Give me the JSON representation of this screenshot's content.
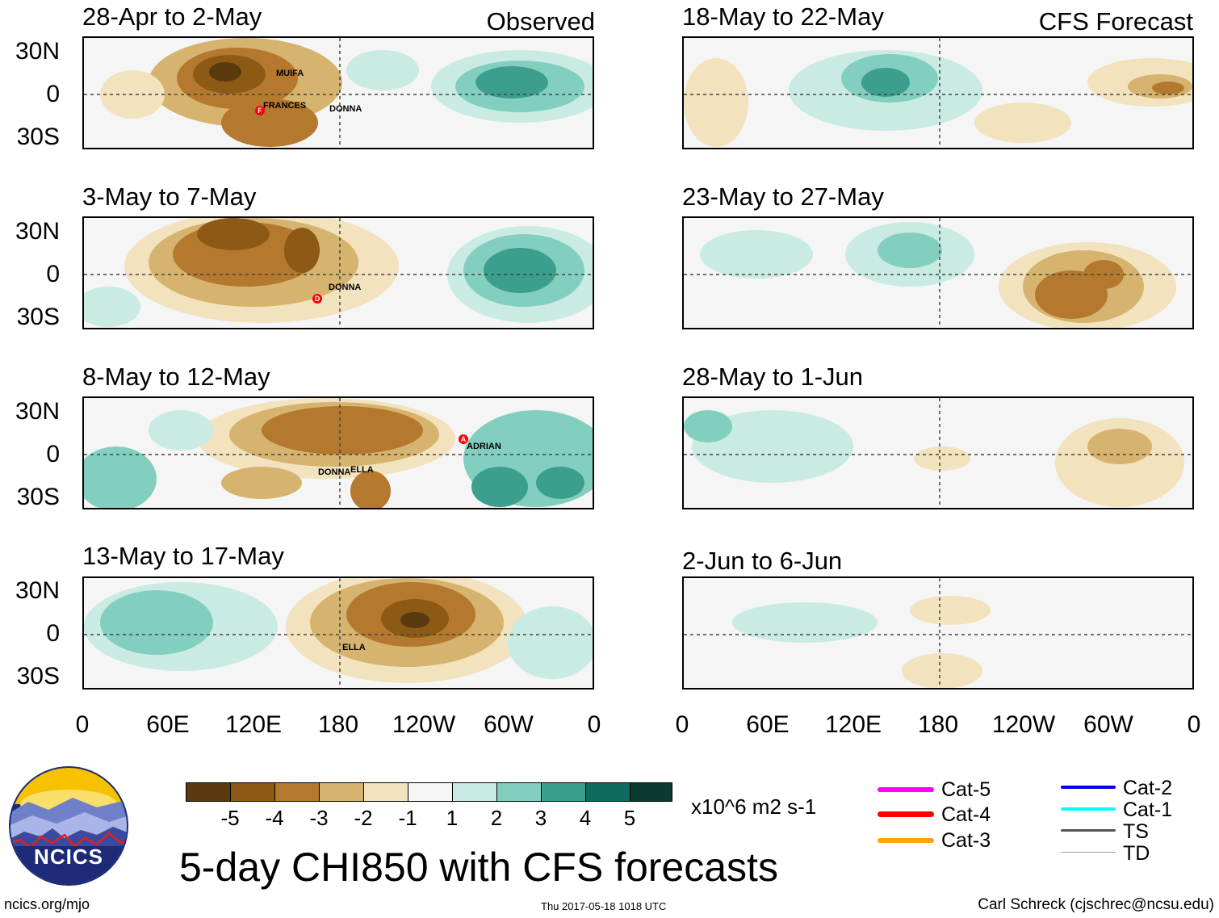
{
  "panels": [
    {
      "title": "28-Apr to 2-May",
      "tag": "Observed",
      "storms": [
        "MUIFA",
        "FRANCES",
        "DONNA"
      ]
    },
    {
      "title": "3-May to 7-May",
      "tag": "",
      "storms": [
        "DONNA"
      ]
    },
    {
      "title": "8-May to 12-May",
      "tag": "",
      "storms": [
        "ADRIAN",
        "DONNA",
        "ELLA"
      ]
    },
    {
      "title": "13-May to 17-May",
      "tag": "",
      "storms": [
        "ELLA"
      ]
    },
    {
      "title": "18-May to 22-May",
      "tag": "CFS Forecast",
      "storms": []
    },
    {
      "title": "23-May to 27-May",
      "tag": "",
      "storms": []
    },
    {
      "title": "28-May to 1-Jun",
      "tag": "",
      "storms": []
    },
    {
      "title": "2-Jun to 6-Jun",
      "tag": "",
      "storms": []
    }
  ],
  "storm_markers": {
    "FRANCES": "F",
    "DONNA": "D",
    "ADRIAN": "A"
  },
  "lat_labels": [
    "30N",
    "0",
    "30S"
  ],
  "lon_labels": [
    "0",
    "60E",
    "120E",
    "180",
    "120W",
    "60W",
    "0"
  ],
  "colorbar": {
    "colors": [
      "#5a3a0c",
      "#8c5a14",
      "#b5782f",
      "#d6b36f",
      "#f2e2bd",
      "#f5f5f5",
      "#c9ebe3",
      "#82cfc0",
      "#3c9f8e",
      "#0e6b5e",
      "#0a3b31"
    ],
    "ticks": [
      "-5",
      "-4",
      "-3",
      "-2",
      "-1",
      "1",
      "2",
      "3",
      "4",
      "5"
    ],
    "units": "x10^6 m2 s-1"
  },
  "legend": [
    {
      "label": "Cat-5",
      "color": "#ff00ff"
    },
    {
      "label": "Cat-4",
      "color": "#ff0000"
    },
    {
      "label": "Cat-3",
      "color": "#ffa500"
    },
    {
      "label": "Cat-2",
      "color": "#0000ee"
    },
    {
      "label": "Cat-1",
      "color": "#00ffff"
    },
    {
      "label": "TS",
      "color": "#555555"
    },
    {
      "label": "TD",
      "color": "#999999"
    }
  ],
  "title": "5-day CHI850 with CFS forecasts",
  "logo_text": "NCICS",
  "footer": {
    "left": "ncics.org/mjo",
    "center": "Thu 2017-05-18 1018 UTC",
    "right": "Carl Schreck (cjschrec@ncsu.edu)"
  }
}
